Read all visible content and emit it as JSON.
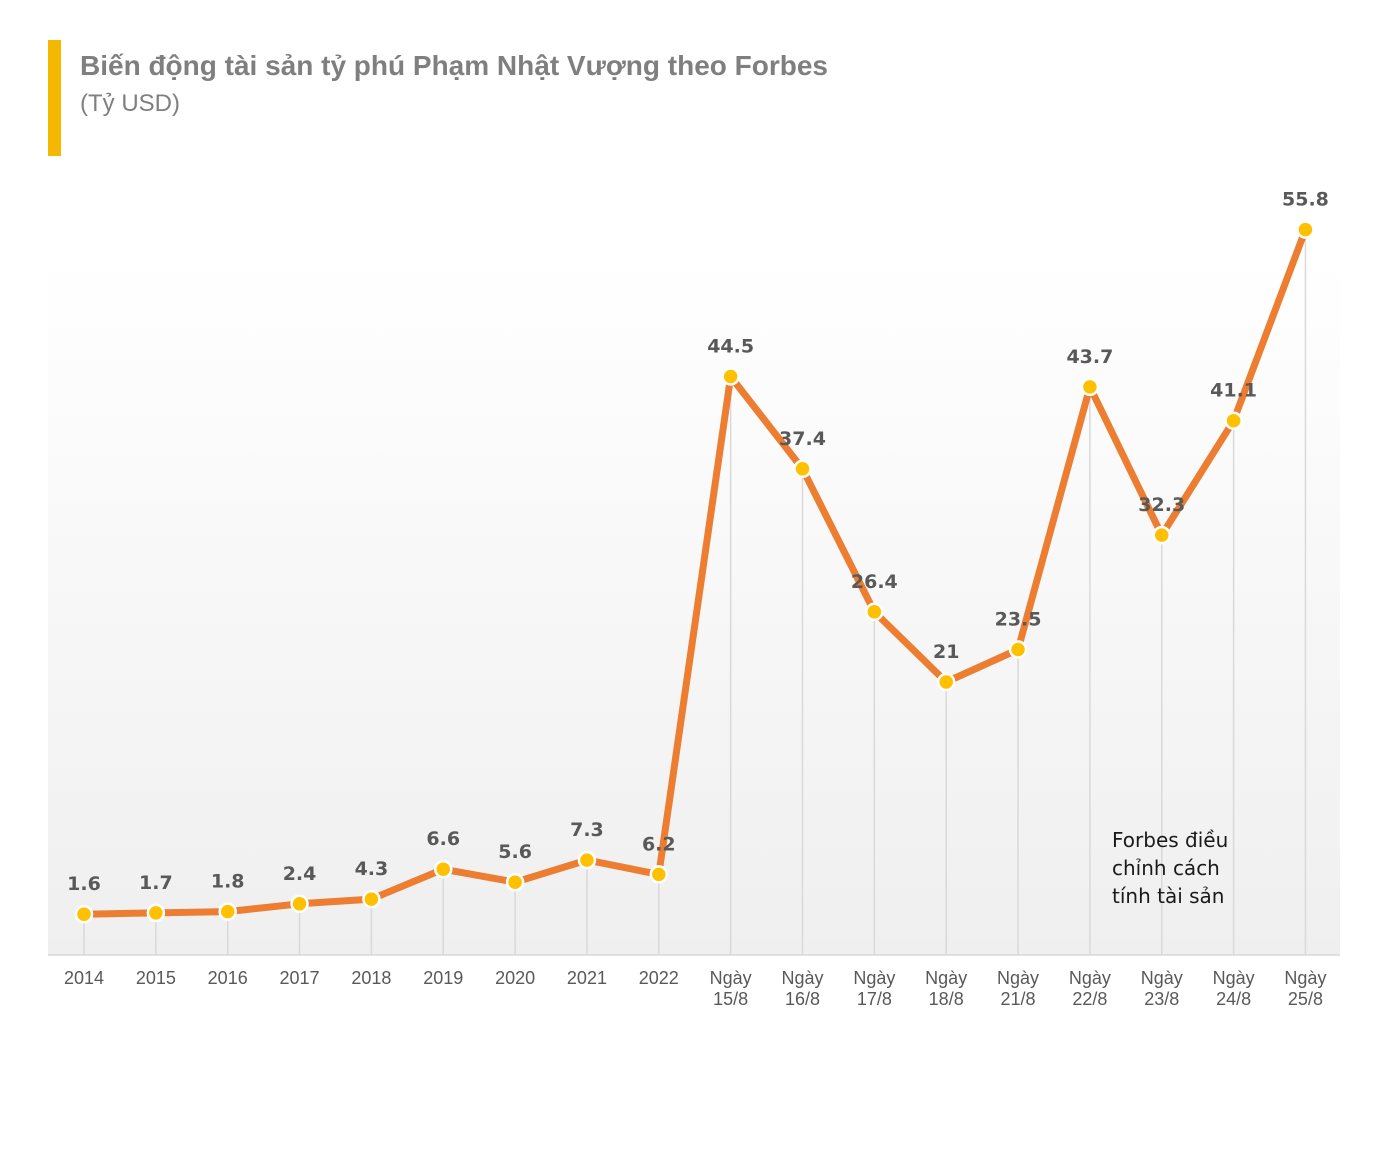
{
  "header": {
    "title": "Biến động tài sản tỷ phú Phạm Nhật Vượng theo Forbes",
    "subtitle": "(Tỷ USD)"
  },
  "colors": {
    "accent": "#f5b800",
    "line": "#ed7d31",
    "marker": "#ffc000",
    "text": "#595959",
    "title": "#7f7f7f"
  },
  "chart_data": {
    "type": "line",
    "title": "Biến động tài sản tỷ phú Phạm Nhật Vượng theo Forbes",
    "subtitle": "(Tỷ USD)",
    "categories": [
      [
        "2014"
      ],
      [
        "2015"
      ],
      [
        "2016"
      ],
      [
        "2017"
      ],
      [
        "2018"
      ],
      [
        "2019"
      ],
      [
        "2020"
      ],
      [
        "2021"
      ],
      [
        "2022"
      ],
      [
        "Ngày",
        "15/8"
      ],
      [
        "Ngày",
        "16/8"
      ],
      [
        "Ngày",
        "17/8"
      ],
      [
        "Ngày",
        "18/8"
      ],
      [
        "Ngày",
        "21/8"
      ],
      [
        "Ngày",
        "22/8"
      ],
      [
        "Ngày",
        "23/8"
      ],
      [
        "Ngày",
        "24/8"
      ],
      [
        "Ngày",
        "25/8"
      ]
    ],
    "series": [
      {
        "values": [
          1.6,
          1.7,
          1.8,
          2.4,
          4.3,
          6.6,
          5.6,
          7.3,
          6.2,
          44.5,
          37.4,
          26.4,
          21,
          23.5,
          43.7,
          32.3,
          41.1,
          55.8
        ],
        "labels": [
          "1.6",
          "1.7",
          "1.8",
          "2.4",
          "4.3",
          "6.6",
          "5.6",
          "7.3",
          "6.2",
          "44.5",
          "37.4",
          "26.4",
          "21",
          "23.5",
          "43.7",
          "32.3",
          "41.1",
          "55.8"
        ]
      }
    ],
    "ylim": [
      0,
      56
    ],
    "grid": "vertical drop lines",
    "annotation": [
      "Forbes điều",
      "chỉnh cách",
      "tính tài sản"
    ]
  }
}
